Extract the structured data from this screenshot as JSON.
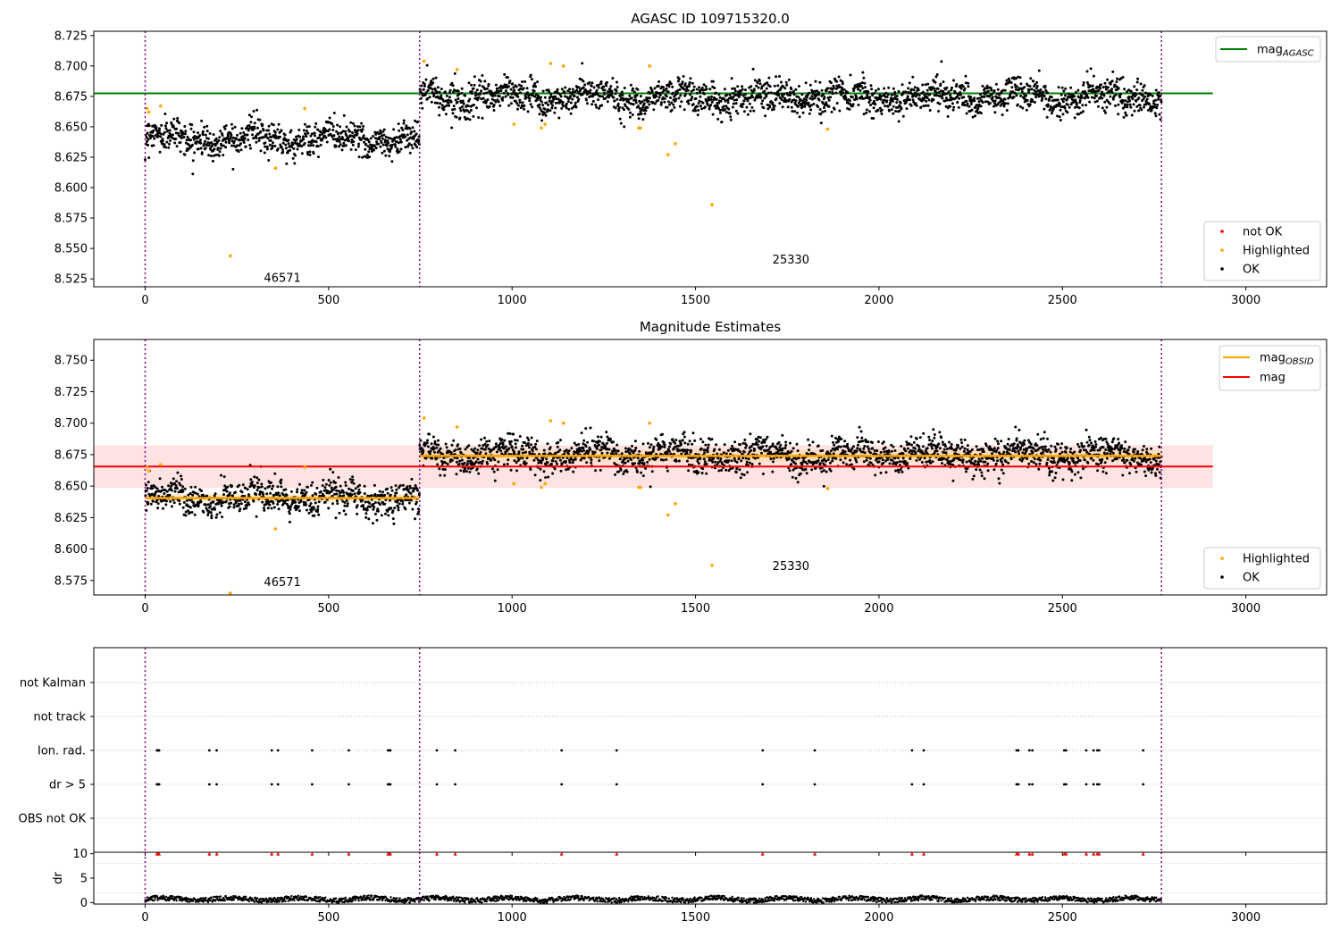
{
  "colors": {
    "ok": "#000000",
    "highlighted": "#ffa500",
    "not_ok": "#ff0000",
    "agasc_line": "#008000",
    "obsid_line": "#ffa500",
    "mag_line": "#ff0000",
    "mag_band": "#ffc0c0",
    "obsid_band": "#ffd8a0",
    "obsid_separator": "#800080",
    "grid": "#b0b0b0"
  },
  "chart_data": [
    {
      "type": "scatter",
      "title": "AGASC ID 109715320.0",
      "xlim": [
        -140,
        3220
      ],
      "ylim": [
        8.5185,
        8.7285
      ],
      "xticks": [
        "0",
        "500",
        "1000",
        "1500",
        "2000",
        "2500",
        "3000"
      ],
      "yticks": [
        "8.525",
        "8.550",
        "8.575",
        "8.600",
        "8.625",
        "8.650",
        "8.675",
        "8.700",
        "8.725"
      ],
      "obsid_boundaries": [
        0,
        748,
        2770
      ],
      "obsid_annotations": [
        {
          "text": "46571",
          "x": 374,
          "y": 8.5225
        },
        {
          "text": "25330",
          "x": 1760,
          "y": 8.5375
        }
      ],
      "lines": [
        {
          "name": "mag_AGASC",
          "name_main": "mag",
          "name_sub": "AGASC",
          "y": 8.6775,
          "x_range": [
            -140,
            2910
          ],
          "color": "agasc_line"
        }
      ],
      "segments": [
        {
          "x_range": [
            0,
            748
          ],
          "mean": 8.6405,
          "spread": 0.0085
        },
        {
          "x_range": [
            748,
            2770
          ],
          "mean": 8.6745,
          "spread": 0.0085
        }
      ],
      "highlighted": [
        [
          5,
          8.665
        ],
        [
          10,
          8.662
        ],
        [
          42,
          8.667
        ],
        [
          232,
          8.544
        ],
        [
          355,
          8.616
        ],
        [
          435,
          8.665
        ],
        [
          760,
          8.704
        ],
        [
          850,
          8.697
        ],
        [
          1005,
          8.652
        ],
        [
          1080,
          8.649
        ],
        [
          1090,
          8.652
        ],
        [
          1105,
          8.702
        ],
        [
          1140,
          8.7
        ],
        [
          1345,
          8.649
        ],
        [
          1350,
          8.649
        ],
        [
          1375,
          8.7
        ],
        [
          1425,
          8.627
        ],
        [
          1445,
          8.636
        ],
        [
          1545,
          8.586
        ],
        [
          1860,
          8.648
        ]
      ],
      "legends": [
        {
          "position": "upper-right",
          "entries": [
            {
              "label_main": "mag",
              "label_sub": "AGASC",
              "kind": "line",
              "color": "agasc_line"
            }
          ]
        },
        {
          "position": "lower-right",
          "entries": [
            {
              "label": "not OK",
              "kind": "dot",
              "color": "not_ok"
            },
            {
              "label": "Highlighted",
              "kind": "dot",
              "color": "highlighted"
            },
            {
              "label": "OK",
              "kind": "dot",
              "color": "ok"
            }
          ]
        }
      ]
    },
    {
      "type": "scatter",
      "title": "Magnitude Estimates",
      "xlim": [
        -140,
        3220
      ],
      "ylim": [
        8.5635,
        8.7665
      ],
      "xticks": [
        "0",
        "500",
        "1000",
        "1500",
        "2000",
        "2500",
        "3000"
      ],
      "yticks": [
        "8.575",
        "8.600",
        "8.625",
        "8.650",
        "8.675",
        "8.700",
        "8.725",
        "8.750"
      ],
      "obsid_boundaries": [
        0,
        748,
        2770
      ],
      "obsid_annotations": [
        {
          "text": "46571",
          "x": 374,
          "y": 8.5705
        },
        {
          "text": "25330",
          "x": 1760,
          "y": 8.5835
        }
      ],
      "mag": {
        "y": 8.6655,
        "band": [
          8.6485,
          8.6825
        ],
        "x_range": [
          -140,
          2910
        ]
      },
      "obsid_mags": [
        {
          "x_range": [
            0,
            748
          ],
          "y": 8.6405,
          "band": [
            8.6375,
            8.6435
          ]
        },
        {
          "x_range": [
            748,
            2770
          ],
          "y": 8.674,
          "band": [
            8.6695,
            8.6785
          ]
        }
      ],
      "segments": [
        {
          "x_range": [
            0,
            748
          ],
          "mean": 8.6405,
          "spread": 0.0085
        },
        {
          "x_range": [
            748,
            2770
          ],
          "mean": 8.6745,
          "spread": 0.0085
        }
      ],
      "highlighted": [
        [
          5,
          8.665
        ],
        [
          10,
          8.662
        ],
        [
          42,
          8.667
        ],
        [
          232,
          8.565
        ],
        [
          355,
          8.616
        ],
        [
          435,
          8.665
        ],
        [
          760,
          8.704
        ],
        [
          850,
          8.697
        ],
        [
          1005,
          8.652
        ],
        [
          1080,
          8.649
        ],
        [
          1090,
          8.652
        ],
        [
          1105,
          8.702
        ],
        [
          1140,
          8.7
        ],
        [
          1345,
          8.649
        ],
        [
          1350,
          8.649
        ],
        [
          1375,
          8.7
        ],
        [
          1425,
          8.627
        ],
        [
          1445,
          8.636
        ],
        [
          1545,
          8.587
        ],
        [
          1860,
          8.648
        ]
      ],
      "legends": [
        {
          "position": "upper-right",
          "entries": [
            {
              "label_main": "mag",
              "label_sub": "OBSID",
              "kind": "line",
              "color": "obsid_line"
            },
            {
              "label": "mag",
              "kind": "line",
              "color": "mag_line"
            }
          ]
        },
        {
          "position": "lower-right",
          "entries": [
            {
              "label": "Highlighted",
              "kind": "dot",
              "color": "highlighted"
            },
            {
              "label": "OK",
              "kind": "dot",
              "color": "ok"
            }
          ]
        }
      ]
    },
    {
      "type": "scatter",
      "title": "",
      "xlim": [
        -140,
        3220
      ],
      "categories": [
        "OBS not OK",
        "dr > 5",
        "Ion. rad.",
        "not track",
        "not Kalman"
      ],
      "grid": true,
      "obsid_boundaries": [
        0,
        748,
        2770
      ],
      "flag_times": [
        32,
        35,
        38,
        175,
        195,
        345,
        362,
        455,
        555,
        662,
        665,
        668,
        795,
        845,
        1135,
        1285,
        1683,
        1825,
        2090,
        2122,
        2375,
        2380,
        2410,
        2418,
        2505,
        2510,
        2565,
        2585,
        2595,
        2600,
        2720
      ],
      "flags": {
        "dr > 5": "flag_times",
        "Ion. rad.": "flag_times"
      }
    },
    {
      "type": "scatter",
      "title": "",
      "ylabel": "dr",
      "xlim": [
        -140,
        3220
      ],
      "ylim": [
        -0.3,
        10.3
      ],
      "xticks": [
        "0",
        "500",
        "1000",
        "1500",
        "2000",
        "2500",
        "3000"
      ],
      "yticks": [
        "0",
        "5",
        "10"
      ],
      "obsid_boundaries": [
        0,
        748,
        2770
      ],
      "dr_typical": [
        0.2,
        1.2
      ],
      "dr_clip_markers": {
        "y": 10,
        "x_from": "flag_times"
      }
    }
  ]
}
